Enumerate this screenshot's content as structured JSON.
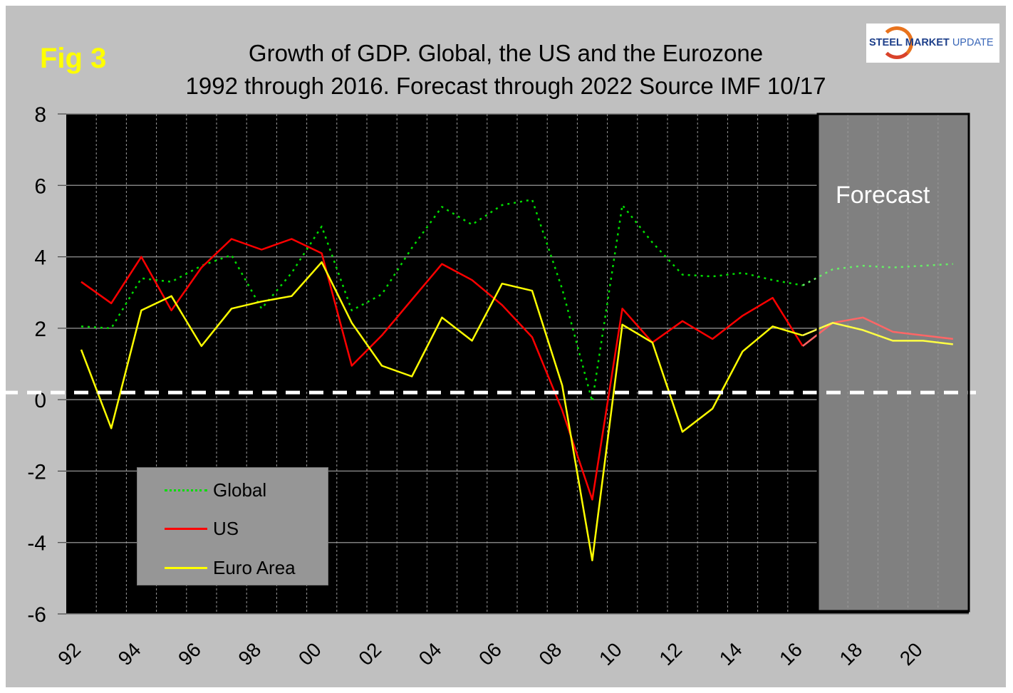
{
  "figure": {
    "label": "Fig 3",
    "title_line1": "Growth of GDP. Global, the US and the Eurozone",
    "title_line2": "1992 through 2016. Forecast through 2022 Source IMF 10/17",
    "logo": {
      "part1": "STEEL",
      "part2": "MARKET",
      "part3": "UPDATE"
    },
    "forecast_label": "Forecast"
  },
  "chart_data": {
    "type": "line",
    "title": "Growth of GDP. Global, the US and the Eurozone 1992 through 2016. Forecast through 2022 Source IMF 10/17",
    "xlabel": "",
    "ylabel": "",
    "ylim": [
      -6,
      8
    ],
    "yticks": [
      8,
      6,
      4,
      2,
      0,
      -2,
      -4,
      -6
    ],
    "ytick_labels": [
      "8",
      "6",
      "4",
      "2",
      "0",
      "-2",
      "-4",
      "-6"
    ],
    "x_start_year": 1992,
    "x_end_year": 2022,
    "xtick_labels": [
      "92",
      "94",
      "96",
      "98",
      "00",
      "02",
      "04",
      "06",
      "08",
      "10",
      "12",
      "14",
      "16",
      "18",
      "20"
    ],
    "x": [
      1992,
      1993,
      1994,
      1995,
      1996,
      1997,
      1998,
      1999,
      2000,
      2001,
      2002,
      2003,
      2004,
      2005,
      2006,
      2007,
      2008,
      2009,
      2010,
      2011,
      2012,
      2013,
      2014,
      2015,
      2016,
      2017,
      2018,
      2019,
      2020,
      2021
    ],
    "forecast_start_year": 2017,
    "grid": {
      "horizontal": true,
      "vertical_dotted": true
    },
    "reference_line": {
      "value": 0.2,
      "style": "dashed",
      "color": "#ffffff"
    },
    "legend_position": "bottom-left",
    "colors": {
      "plot_bg": "#000000",
      "forecast_bg": "#808080",
      "frame_bg": "#c0c0c0"
    },
    "series": [
      {
        "name": "Global",
        "color": "#00dd00",
        "forecast_color": "#66ee66",
        "style": "dotted",
        "values": [
          2.05,
          2.0,
          3.4,
          3.3,
          3.75,
          4.05,
          2.55,
          3.55,
          4.85,
          2.5,
          2.95,
          4.25,
          5.4,
          4.9,
          5.45,
          5.6,
          3.1,
          -0.05,
          5.45,
          4.4,
          3.5,
          3.45,
          3.55,
          3.35,
          3.2,
          3.65,
          3.75,
          3.7,
          3.75,
          3.8
        ]
      },
      {
        "name": "US",
        "color": "#ff0000",
        "forecast_color": "#ff6666",
        "style": "solid",
        "values": [
          3.3,
          2.7,
          4.0,
          2.5,
          3.7,
          4.5,
          4.2,
          4.5,
          4.1,
          0.95,
          1.8,
          2.8,
          3.8,
          3.35,
          2.65,
          1.75,
          -0.3,
          -2.8,
          2.55,
          1.6,
          2.2,
          1.7,
          2.35,
          2.85,
          1.5,
          2.15,
          2.3,
          1.9,
          1.8,
          1.7
        ]
      },
      {
        "name": "Euro Area",
        "color": "#ffff00",
        "forecast_color": "#ffff44",
        "style": "solid",
        "values": [
          1.4,
          -0.8,
          2.5,
          2.9,
          1.5,
          2.55,
          2.75,
          2.9,
          3.85,
          2.15,
          0.95,
          0.65,
          2.3,
          1.65,
          3.25,
          3.05,
          0.4,
          -4.5,
          2.1,
          1.6,
          -0.9,
          -0.25,
          1.35,
          2.05,
          1.8,
          2.15,
          1.95,
          1.65,
          1.65,
          1.55
        ]
      }
    ]
  }
}
